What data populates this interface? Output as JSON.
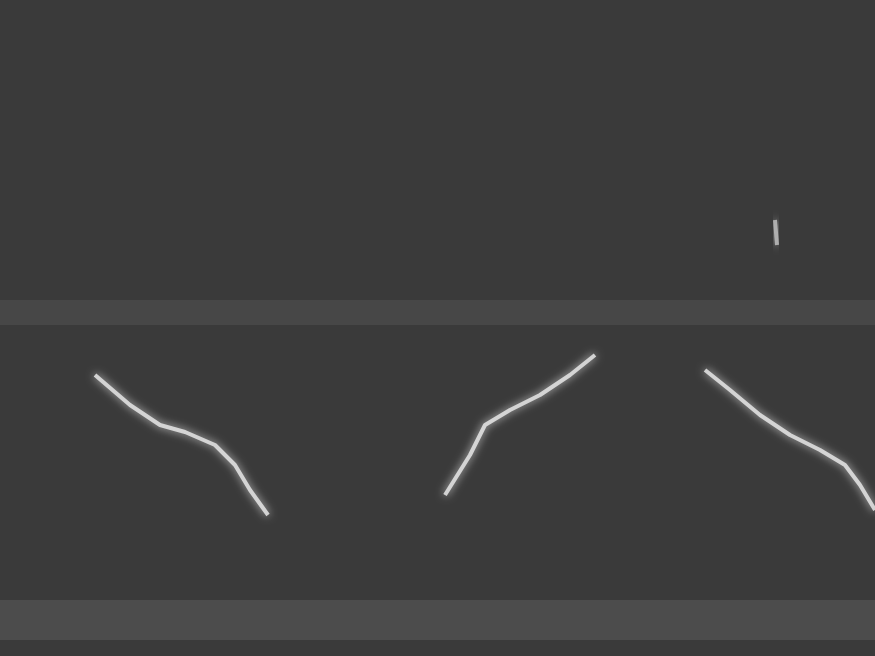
{
  "chart_data": {
    "type": "line",
    "xlim": [
      0,
      875
    ],
    "ylim": [
      0,
      656
    ],
    "grid": false,
    "tick_labels": false,
    "background": "#3a3a3a",
    "bands": [
      {
        "y": [
          331,
          356
        ],
        "color": "#474747"
      },
      {
        "y": [
          16,
          56
        ],
        "color": "#4c4c4c"
      }
    ],
    "series": [
      {
        "color": "#e6e6e6",
        "x": [
          95,
          130,
          160,
          185,
          215,
          235,
          250,
          268
        ],
        "values": [
          281,
          251,
          231,
          224,
          211,
          191,
          166,
          141
        ]
      },
      {
        "color": "#e6e6e6",
        "x": [
          445,
          470,
          485,
          510,
          540,
          570,
          595
        ],
        "values": [
          161,
          201,
          231,
          246,
          261,
          281,
          301
        ]
      },
      {
        "color": "#e6e6e6",
        "x": [
          705,
          730,
          760,
          790,
          820,
          845,
          860,
          875
        ],
        "values": [
          286,
          266,
          241,
          221,
          206,
          191,
          171,
          146
        ]
      },
      {
        "color": "#bdbdbd",
        "x": [
          775,
          777
        ],
        "values": [
          436,
          411
        ]
      }
    ]
  }
}
